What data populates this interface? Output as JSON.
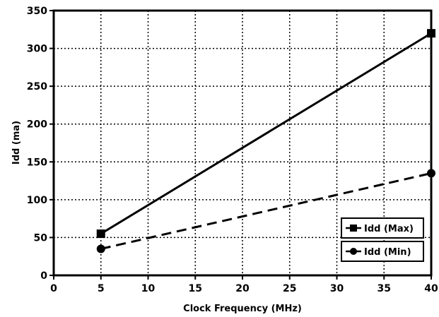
{
  "chart_data": {
    "type": "line",
    "xlabel": "Clock Frequency (MHz)",
    "ylabel": "Idd (ma)",
    "xlim": [
      0,
      40
    ],
    "ylim": [
      0,
      350
    ],
    "xticks": [
      0,
      5,
      10,
      15,
      20,
      25,
      30,
      35,
      40
    ],
    "yticks": [
      0,
      50,
      100,
      150,
      200,
      250,
      300,
      350
    ],
    "grid": true,
    "legend_position": "bottom-right",
    "series": [
      {
        "name": "Idd (Max)",
        "marker": "square",
        "line_style": "solid",
        "color": "#000000",
        "x": [
          5,
          40
        ],
        "y": [
          55,
          320
        ]
      },
      {
        "name": "Idd (Min)",
        "marker": "circle",
        "line_style": "dashed",
        "color": "#000000",
        "x": [
          5,
          40
        ],
        "y": [
          35,
          135
        ]
      }
    ]
  }
}
